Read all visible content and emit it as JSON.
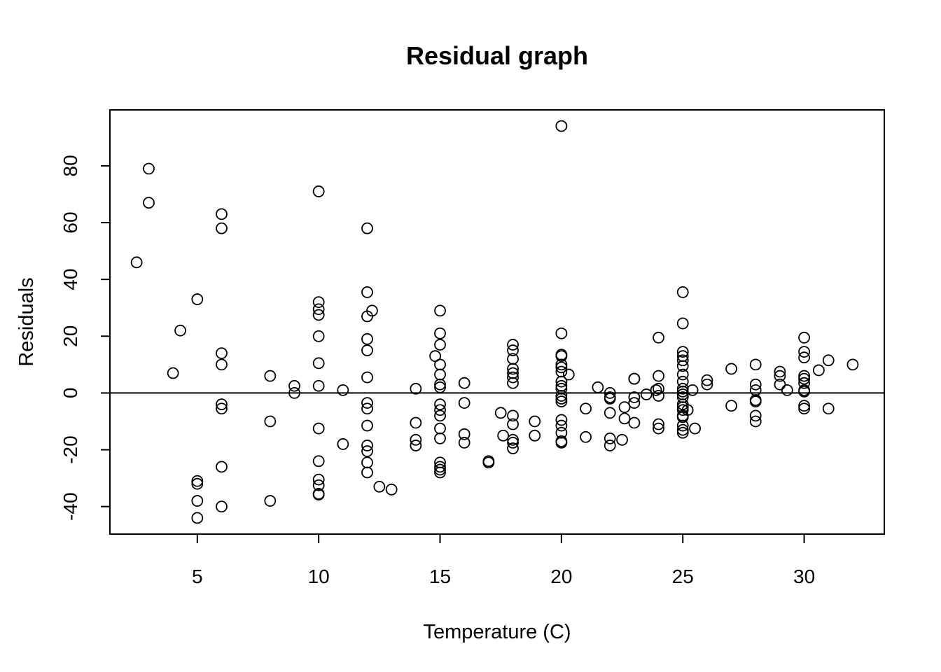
{
  "chart_data": {
    "type": "scatter",
    "title": "Residual graph",
    "xlabel": "Temperature (C)",
    "ylabel": "Residuals",
    "xlim": [
      1.4,
      33.3
    ],
    "ylim": [
      -49.7,
      99.7
    ],
    "xticks": [
      5,
      10,
      15,
      20,
      25,
      30
    ],
    "yticks": [
      -40,
      -20,
      0,
      20,
      40,
      60,
      80
    ],
    "xtick_labels": [
      "5",
      "10",
      "15",
      "20",
      "25",
      "30"
    ],
    "ytick_labels": [
      "-40",
      "-20",
      "0",
      "20",
      "40",
      "60",
      "80"
    ],
    "reference_line": 0,
    "grid": false,
    "marker": "open-circle",
    "points": [
      [
        2.5,
        46
      ],
      [
        3,
        79
      ],
      [
        3,
        67
      ],
      [
        4,
        7
      ],
      [
        4.3,
        22
      ],
      [
        5,
        33
      ],
      [
        5,
        -31
      ],
      [
        5,
        -32
      ],
      [
        5,
        -38
      ],
      [
        5,
        -44
      ],
      [
        6,
        63
      ],
      [
        6,
        58
      ],
      [
        6,
        14
      ],
      [
        6,
        10
      ],
      [
        6,
        -4
      ],
      [
        6,
        -5.5
      ],
      [
        6,
        -26
      ],
      [
        6,
        -40
      ],
      [
        8,
        6
      ],
      [
        8,
        -10
      ],
      [
        8,
        -38
      ],
      [
        9,
        2.5
      ],
      [
        9,
        0
      ],
      [
        10,
        71
      ],
      [
        10,
        32
      ],
      [
        10,
        29.5
      ],
      [
        10,
        27.5
      ],
      [
        10,
        20
      ],
      [
        10,
        10.5
      ],
      [
        10,
        2.5
      ],
      [
        10,
        -12.5
      ],
      [
        10,
        -24
      ],
      [
        10,
        -30.5
      ],
      [
        10,
        -32.5
      ],
      [
        10,
        -35.5
      ],
      [
        10,
        -35.8
      ],
      [
        11,
        1
      ],
      [
        11,
        -18
      ],
      [
        12,
        58
      ],
      [
        12,
        35.5
      ],
      [
        12,
        27
      ],
      [
        12,
        19
      ],
      [
        12,
        15
      ],
      [
        12,
        5.5
      ],
      [
        12,
        -3.5
      ],
      [
        12,
        -5.5
      ],
      [
        12,
        -11.5
      ],
      [
        12,
        -18.5
      ],
      [
        12,
        -20.5
      ],
      [
        12,
        -24.5
      ],
      [
        12,
        -28
      ],
      [
        12.2,
        29
      ],
      [
        12.5,
        -33
      ],
      [
        13,
        -34
      ],
      [
        14,
        1.5
      ],
      [
        14,
        -10.5
      ],
      [
        14,
        -16.5
      ],
      [
        14,
        -18.5
      ],
      [
        14.8,
        13
      ],
      [
        15,
        29
      ],
      [
        15,
        21
      ],
      [
        15,
        17
      ],
      [
        15,
        10
      ],
      [
        15,
        6.5
      ],
      [
        15,
        3
      ],
      [
        15,
        2
      ],
      [
        15,
        -4
      ],
      [
        15,
        -6
      ],
      [
        15,
        -8
      ],
      [
        15,
        -12.5
      ],
      [
        15,
        -16
      ],
      [
        15,
        -24.5
      ],
      [
        15,
        -26
      ],
      [
        15,
        -27
      ],
      [
        15,
        -28
      ],
      [
        16,
        3.5
      ],
      [
        16,
        -3.5
      ],
      [
        16,
        -14.5
      ],
      [
        16,
        -17.5
      ],
      [
        17,
        -24
      ],
      [
        17,
        -24.5
      ],
      [
        17.5,
        -7
      ],
      [
        17.6,
        -15
      ],
      [
        18,
        17
      ],
      [
        18,
        15
      ],
      [
        18,
        12
      ],
      [
        18,
        8.5
      ],
      [
        18,
        7
      ],
      [
        18,
        5.5
      ],
      [
        18,
        3.5
      ],
      [
        18,
        -8
      ],
      [
        18,
        -11
      ],
      [
        18,
        -16.5
      ],
      [
        18,
        -17.5
      ],
      [
        18,
        -19.5
      ],
      [
        18.9,
        -10
      ],
      [
        18.9,
        -15
      ],
      [
        20,
        94
      ],
      [
        20,
        21
      ],
      [
        20,
        13.5
      ],
      [
        20,
        13
      ],
      [
        20,
        10
      ],
      [
        20,
        9
      ],
      [
        20,
        7.5
      ],
      [
        20,
        4
      ],
      [
        20,
        2.5
      ],
      [
        20,
        1.5
      ],
      [
        20,
        -1
      ],
      [
        20,
        -2
      ],
      [
        20,
        -3
      ],
      [
        20,
        -9.5
      ],
      [
        20,
        -11.5
      ],
      [
        20,
        -14
      ],
      [
        20,
        -17
      ],
      [
        20,
        -17.5
      ],
      [
        20.3,
        6.5
      ],
      [
        21,
        -5.5
      ],
      [
        21,
        -15.5
      ],
      [
        21.5,
        2
      ],
      [
        22,
        0
      ],
      [
        22,
        -1.5
      ],
      [
        22,
        -2
      ],
      [
        22,
        -7
      ],
      [
        22,
        -16
      ],
      [
        22,
        -18.5
      ],
      [
        22.5,
        -16.5
      ],
      [
        22.6,
        -5
      ],
      [
        22.6,
        -9
      ],
      [
        23,
        5
      ],
      [
        23,
        5
      ],
      [
        23,
        -1.5
      ],
      [
        23,
        -3.5
      ],
      [
        23,
        -10.5
      ],
      [
        23.5,
        -0.5
      ],
      [
        23.9,
        1
      ],
      [
        24,
        19.5
      ],
      [
        24,
        6
      ],
      [
        24,
        1.5
      ],
      [
        24,
        -1
      ],
      [
        24,
        -11
      ],
      [
        24,
        -12.5
      ],
      [
        25,
        35.5
      ],
      [
        25,
        24.5
      ],
      [
        25,
        14.5
      ],
      [
        25,
        13
      ],
      [
        25,
        11.5
      ],
      [
        25,
        9.5
      ],
      [
        25,
        6.5
      ],
      [
        25,
        4
      ],
      [
        25,
        1.5
      ],
      [
        25,
        0.5
      ],
      [
        25,
        -0.5
      ],
      [
        25,
        -1.5
      ],
      [
        25,
        -4
      ],
      [
        25,
        -5
      ],
      [
        25,
        -6
      ],
      [
        25,
        -8
      ],
      [
        25,
        -8.5
      ],
      [
        25,
        -11.5
      ],
      [
        25,
        -13
      ],
      [
        25,
        -14
      ],
      [
        25.2,
        -6
      ],
      [
        25.4,
        1
      ],
      [
        25.5,
        -12.5
      ],
      [
        26,
        4.5
      ],
      [
        26,
        3
      ],
      [
        27,
        8.5
      ],
      [
        27,
        -4.5
      ],
      [
        28,
        10
      ],
      [
        28,
        3
      ],
      [
        28,
        1
      ],
      [
        28,
        -2.5
      ],
      [
        28,
        -3
      ],
      [
        28,
        -8
      ],
      [
        28,
        -10
      ],
      [
        29,
        7.5
      ],
      [
        29,
        6
      ],
      [
        29,
        3
      ],
      [
        29.3,
        1
      ],
      [
        30,
        19.5
      ],
      [
        30,
        14.5
      ],
      [
        30,
        12.5
      ],
      [
        30,
        6
      ],
      [
        30,
        5
      ],
      [
        30,
        3.5
      ],
      [
        30,
        1
      ],
      [
        30,
        0.5
      ],
      [
        30,
        -4.5
      ],
      [
        30,
        -5.5
      ],
      [
        30.6,
        8
      ],
      [
        31,
        11.5
      ],
      [
        31,
        -5.5
      ],
      [
        32,
        10
      ]
    ]
  }
}
